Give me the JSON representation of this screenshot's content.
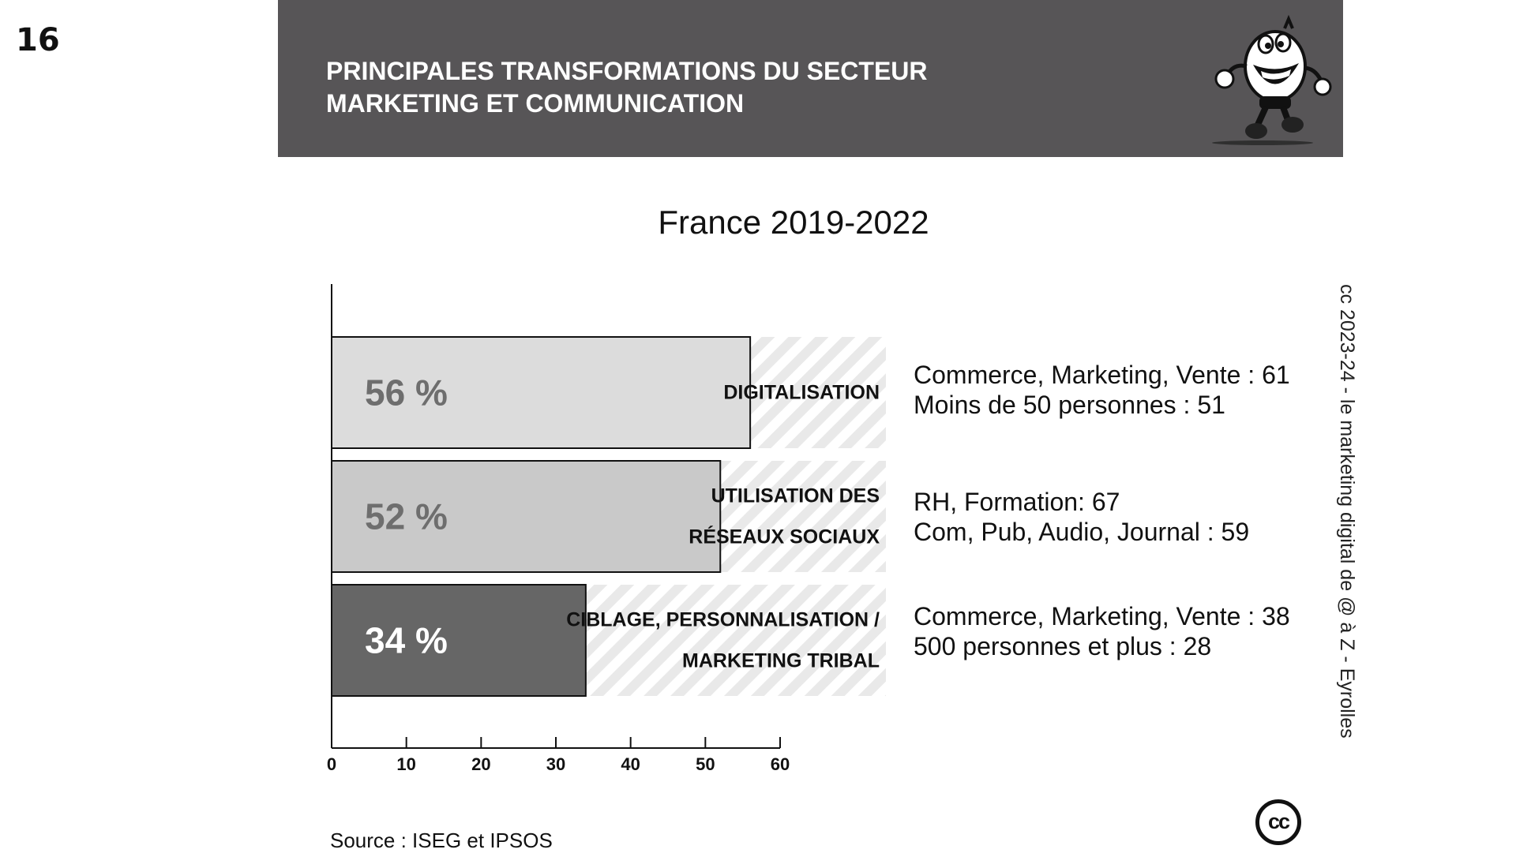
{
  "slide_number": "16",
  "header": {
    "title_line1": "PRINCIPALES TRANSFORMATIONS DU SECTEUR",
    "title_line2": "MARKETING ET COMMUNICATION"
  },
  "chart_data": {
    "type": "bar",
    "orientation": "horizontal",
    "title": "France 2019-2022",
    "categories": [
      [
        "DIGITALISATION"
      ],
      [
        "UTILISATION DES",
        "RÉSEAUX SOCIAUX"
      ],
      [
        "CIBLAGE, PERSONNALISATION /",
        "MARKETING TRIBAL"
      ]
    ],
    "values": [
      56,
      52,
      34
    ],
    "value_labels": [
      "56 %",
      "52 %",
      "34 %"
    ],
    "bar_colors": [
      "#dcdcdc",
      "#c9c9c9",
      "#666666"
    ],
    "value_label_colors": [
      "#6e6e6e",
      "#6e6e6e",
      "#ffffff"
    ],
    "xlim": [
      0,
      60
    ],
    "xticks": [
      0,
      10,
      20,
      30,
      40,
      50,
      60
    ],
    "background_track": "hatched",
    "grid": false
  },
  "notes": [
    [
      "Commerce, Marketing, Vente : 61",
      "Moins de 50 personnes : 51"
    ],
    [
      "RH, Formation: 67",
      "Com, Pub, Audio, Journal : 59"
    ],
    [
      "Commerce, Marketing, Vente : 38",
      "500 personnes et plus : 28"
    ]
  ],
  "credit": "cc 2023-24  - le marketing digital de @ à Z - Eyrolles",
  "cc_logo": "cc",
  "source": "Source : ISEG et IPSOS"
}
